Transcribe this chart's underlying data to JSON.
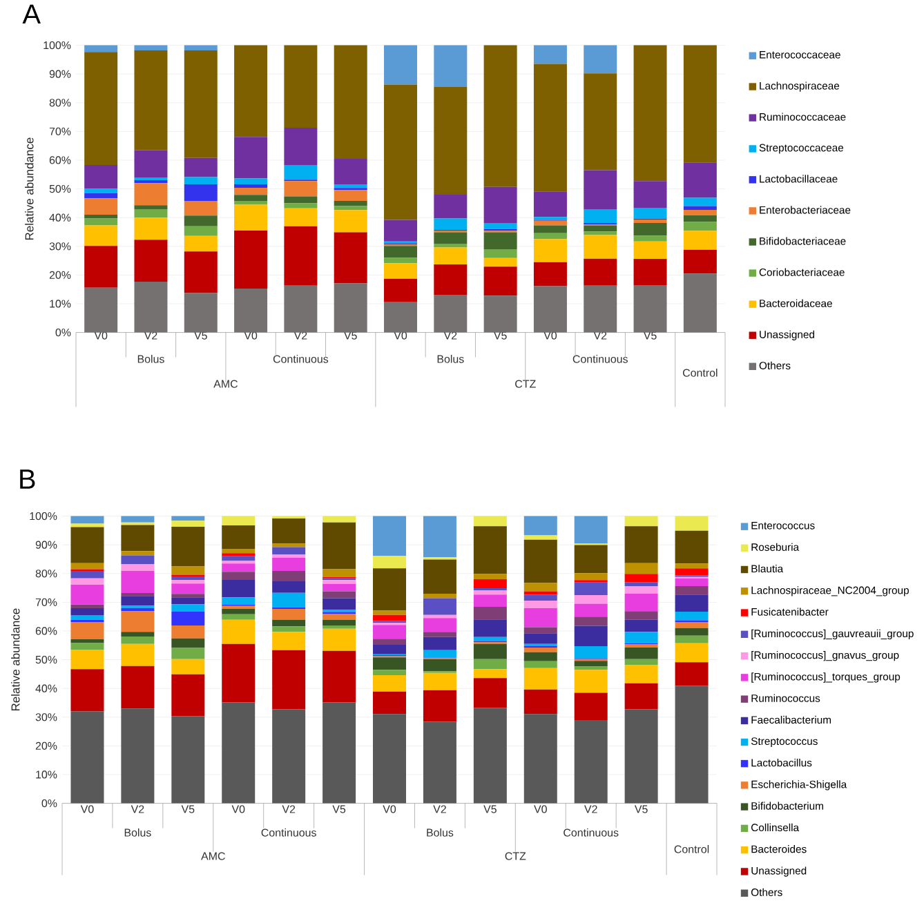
{
  "chart_data": [
    {
      "type": "bar",
      "title": "A",
      "ylabel": "Relative abundance",
      "stacked": true,
      "grid": "y",
      "legend": "right",
      "categories": [
        "V0",
        "V2",
        "V5",
        "V0",
        "V2",
        "V5",
        "V0",
        "V2",
        "V5",
        "V0",
        "V2",
        "V5",
        null
      ],
      "ylim": [
        0,
        100
      ],
      "yticks": [
        {
          "value": 0,
          "label": "0%"
        },
        {
          "value": 10,
          "label": "10%"
        },
        {
          "value": 20,
          "label": "20%"
        },
        {
          "value": 30,
          "label": "30%"
        },
        {
          "value": 40,
          "label": "40%"
        },
        {
          "value": 50,
          "label": "50%"
        },
        {
          "value": 60,
          "label": "60%"
        },
        {
          "value": 70,
          "label": "70%"
        },
        {
          "value": 80,
          "label": "80%"
        },
        {
          "value": 90,
          "label": "90%"
        },
        {
          "value": 100,
          "label": "100%"
        }
      ],
      "annotations": [
        "Bolus",
        "Continuous",
        "Bolus",
        "Continuous",
        "AMC",
        "CTZ",
        "Control"
      ],
      "series": [
        {
          "name": "Others",
          "color": "#767171",
          "values": [
            15.6,
            17.7,
            13.7,
            15.3,
            16.3,
            17.1,
            10.7,
            13.1,
            12.8,
            16.1,
            16.3,
            16.5,
            20.5
          ]
        },
        {
          "name": "Unassigned",
          "color": "#c00000",
          "values": [
            14.5,
            14.6,
            14.5,
            20.2,
            20.7,
            17.8,
            8.0,
            10.6,
            10.1,
            8.4,
            9.4,
            9.1,
            8.3
          ]
        },
        {
          "name": "Bacteroidaceae",
          "color": "#ffc000",
          "values": [
            7.2,
            7.7,
            5.4,
            9.0,
            6.2,
            7.7,
            5.4,
            5.9,
            3.0,
            8.0,
            8.2,
            6.1,
            6.6
          ]
        },
        {
          "name": "Coriobacteriaceae",
          "color": "#70ad47",
          "values": [
            2.4,
            2.9,
            3.4,
            1.3,
            1.8,
            1.4,
            1.9,
            1.3,
            3.1,
            2.1,
            1.3,
            2.0,
            3.1
          ]
        },
        {
          "name": "Bifidobacteriaceae",
          "color": "#43682b",
          "values": [
            1.3,
            1.4,
            3.7,
            2.1,
            2.4,
            1.8,
            4.1,
            4.0,
            5.9,
            2.7,
            2.1,
            4.4,
            2.3
          ]
        },
        {
          "name": "Enterobacteriaceae",
          "color": "#ed7d31",
          "values": [
            5.7,
            7.7,
            5.1,
            2.5,
            5.3,
            3.8,
            0.5,
            0.6,
            0.5,
            1.6,
            0.3,
            1.2,
            1.9
          ]
        },
        {
          "name": "Lactobacillaceae",
          "color": "#3333ee",
          "values": [
            1.8,
            1.0,
            5.8,
            1.2,
            0.5,
            0.7,
            0.4,
            0.2,
            0.6,
            0.3,
            0.5,
            0.3,
            1.3
          ]
        },
        {
          "name": "Streptococcaceae",
          "color": "#00b0f0",
          "values": [
            1.5,
            1.0,
            2.5,
            2.0,
            5.1,
            1.3,
            0.7,
            4.0,
            2.1,
            1.0,
            4.8,
            3.8,
            2.9
          ]
        },
        {
          "name": "Ruminococcaceae",
          "color": "#7030a0",
          "values": [
            8.3,
            9.4,
            6.7,
            14.5,
            13.0,
            8.9,
            7.5,
            8.3,
            12.6,
            8.9,
            13.6,
            9.3,
            12.3
          ]
        },
        {
          "name": "Lachnospiraceae",
          "color": "#7f6000",
          "values": [
            39.4,
            34.8,
            37.4,
            31.9,
            28.7,
            39.5,
            47.1,
            37.5,
            49.3,
            44.4,
            33.7,
            47.3,
            40.8
          ]
        },
        {
          "name": "Enterococcaceae",
          "color": "#5b9bd5",
          "values": [
            2.3,
            1.8,
            1.8,
            0,
            0,
            null,
            13.7,
            14.5,
            0,
            6.5,
            9.8,
            0,
            0
          ]
        }
      ]
    },
    {
      "type": "bar",
      "title": "B",
      "ylabel": "Relative abundance",
      "stacked": true,
      "grid": "y",
      "legend": "right",
      "categories": [
        "V0",
        "V2",
        "V5",
        "V0",
        "V2",
        "V5",
        "V0",
        "V2",
        "V5",
        "V0",
        "V2",
        "V5",
        null
      ],
      "ylim": [
        0,
        100
      ],
      "yticks": [
        {
          "value": 0,
          "label": "0%"
        },
        {
          "value": 10,
          "label": "10%"
        },
        {
          "value": 20,
          "label": "20%"
        },
        {
          "value": 30,
          "label": "30%"
        },
        {
          "value": 40,
          "label": "40%"
        },
        {
          "value": 50,
          "label": "50%"
        },
        {
          "value": 60,
          "label": "60%"
        },
        {
          "value": 70,
          "label": "70%"
        },
        {
          "value": 80,
          "label": "80%"
        },
        {
          "value": 90,
          "label": "90%"
        },
        {
          "value": 100,
          "label": "100%"
        }
      ],
      "annotations": [
        "Bolus",
        "Continuous",
        "Bolus",
        "Continuous",
        "AMC",
        "CTZ",
        "Control"
      ],
      "series": [
        {
          "name": "Others",
          "color": "#595959",
          "values": [
            32.0,
            33.0,
            30.3,
            35.1,
            32.7,
            35.1,
            31.1,
            28.4,
            33.2,
            31.1,
            29.0,
            32.7,
            40.9
          ]
        },
        {
          "name": "Unassigned",
          "color": "#c00000",
          "values": [
            14.7,
            14.8,
            14.6,
            20.4,
            20.6,
            18.0,
            7.8,
            11.0,
            10.4,
            8.5,
            9.5,
            9.1,
            8.2
          ]
        },
        {
          "name": "Bacteroides",
          "color": "#ffc000",
          "values": [
            6.8,
            7.7,
            5.3,
            8.4,
            6.4,
            7.7,
            5.7,
            6.0,
            3.1,
            7.5,
            8.0,
            6.3,
            6.6
          ]
        },
        {
          "name": "Collinsella",
          "color": "#70ad47",
          "values": [
            2.3,
            2.6,
            3.9,
            1.9,
            1.9,
            1.1,
            1.9,
            0.6,
            3.5,
            2.4,
            1.1,
            2.1,
            2.7
          ]
        },
        {
          "name": "Bifidobacterium",
          "color": "#375623",
          "values": [
            1.3,
            1.6,
            3.3,
            1.9,
            2.3,
            2.0,
            4.3,
            4.2,
            5.3,
            3.1,
            2.0,
            4.0,
            2.6
          ]
        },
        {
          "name": "Escherichia-Shigella",
          "color": "#ed7d31",
          "values": [
            5.9,
            7.2,
            4.5,
            1.0,
            3.8,
            2.0,
            0.4,
            0.3,
            0.6,
            1.6,
            0.6,
            1.1,
            2.1
          ]
        },
        {
          "name": "Lactobacillus",
          "color": "#3333ff",
          "values": [
            0.9,
            1.1,
            4.8,
            0.5,
            0.5,
            0.7,
            0.4,
            0.2,
            0.4,
            0.5,
            0.2,
            0.4,
            0.6
          ]
        },
        {
          "name": "Streptococcus",
          "color": "#00b0f0",
          "values": [
            1.6,
            0.8,
            2.6,
            2.5,
            5.1,
            0.8,
            0.3,
            2.6,
            1.4,
            0.8,
            4.3,
            4.0,
            3.0
          ]
        },
        {
          "name": "Faecalibacterium",
          "color": "#3b2ca0",
          "values": [
            2.4,
            3.4,
            2.4,
            6.1,
            4.0,
            4.0,
            3.3,
            4.6,
            6.1,
            3.7,
            7.1,
            4.2,
            6.0
          ]
        },
        {
          "name": "Ruminococcus",
          "color": "#7f3f76",
          "values": [
            1.3,
            1.0,
            1.2,
            2.8,
            3.6,
            2.4,
            2.1,
            1.8,
            4.4,
            2.1,
            3.2,
            3.0,
            2.9
          ]
        },
        {
          "name": "[Ruminococcus]_torques_group",
          "color": "#e83ee0",
          "values": [
            6.9,
            7.7,
            3.6,
            2.9,
            4.6,
            2.6,
            4.8,
            4.8,
            4.3,
            6.6,
            4.5,
            6.1,
            2.7
          ]
        },
        {
          "name": "[Ruminococcus]_gnavus_group",
          "color": "#ff99e6",
          "values": [
            2.2,
            2.4,
            1.3,
            0.9,
            1.2,
            1.3,
            0.8,
            1.1,
            1.4,
            2.7,
            3.0,
            2.6,
            0.5
          ]
        },
        {
          "name": "[Ruminococcus]_gauvreauii_group",
          "color": "#5b4fc4",
          "values": [
            2.6,
            3.0,
            1.2,
            1.6,
            2.5,
            0.6,
            0.6,
            5.8,
            0.8,
            2.1,
            4.4,
            1.4,
            0.6
          ]
        },
        {
          "name": "Fusicatenibacter",
          "color": "#ff0000",
          "values": [
            0.6,
            null,
            0.6,
            1.1,
            null,
            0.5,
            2.1,
            0,
            3.1,
            1.1,
            0.8,
            2.9,
            2.4
          ]
        },
        {
          "name": "Lachnospiraceae_NC2004_group",
          "color": "#bf9000",
          "values": [
            2.1,
            1.5,
            2.9,
            1.5,
            1.2,
            2.7,
            1.5,
            1.6,
            1.8,
            2.9,
            2.4,
            3.7,
            1.7
          ]
        },
        {
          "name": "Blautia",
          "color": "#5f4a00",
          "values": [
            12.6,
            9.1,
            13.8,
            8.2,
            8.8,
            16.3,
            14.7,
            11.9,
            16.7,
            15.1,
            9.8,
            12.9,
            11.4
          ]
        },
        {
          "name": "Roseburia",
          "color": "#eaea50",
          "values": [
            1.2,
            0.9,
            2.1,
            3.2,
            0.8,
            2.2,
            4.4,
            0.8,
            3.5,
            1.5,
            0.5,
            3.5,
            5.1
          ]
        },
        {
          "name": "Enterococcus",
          "color": "#5b9bd5",
          "values": [
            2.6,
            2.2,
            1.6,
            0,
            0,
            0,
            13.8,
            14.3,
            0,
            6.7,
            9.6,
            0,
            0
          ]
        }
      ]
    }
  ]
}
